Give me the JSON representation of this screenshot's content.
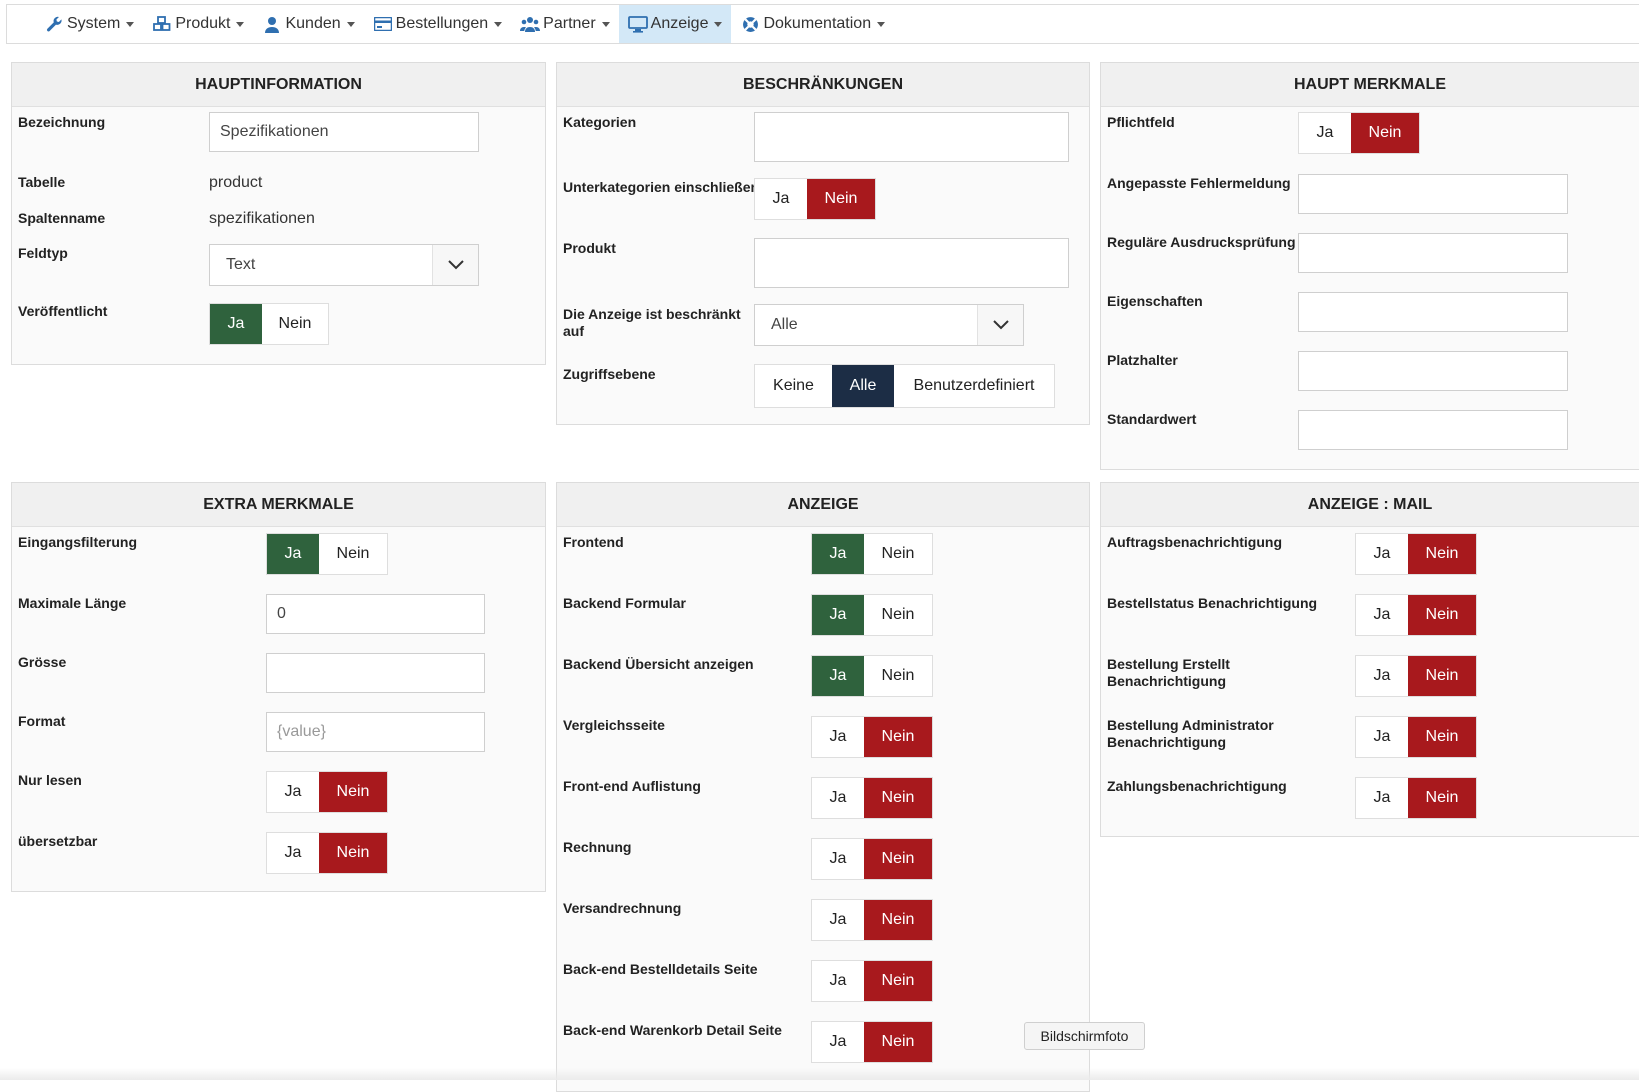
{
  "nav": {
    "items": [
      {
        "label": "System",
        "icon": "wrench-icon"
      },
      {
        "label": "Produkt",
        "icon": "cubes-icon"
      },
      {
        "label": "Kunden",
        "icon": "user-icon"
      },
      {
        "label": "Bestellungen",
        "icon": "credit-card-icon"
      },
      {
        "label": "Partner",
        "icon": "users-icon"
      },
      {
        "label": "Anzeige",
        "icon": "monitor-icon",
        "active": true
      },
      {
        "label": "Dokumentation",
        "icon": "lifebuoy-icon"
      }
    ]
  },
  "colors": {
    "accent_green": "#2f623d",
    "accent_red": "#a8191d",
    "accent_navy": "#1c2d45",
    "active_nav": "#d3e8f7"
  },
  "hauptinformation": {
    "title": "HAUPTINFORMATION",
    "bezeichnung_label": "Bezeichnung",
    "bezeichnung_value": "Spezifikationen",
    "tabelle_label": "Tabelle",
    "tabelle_value": "product",
    "spaltenname_label": "Spaltenname",
    "spaltenname_value": "spezifikationen",
    "feldtyp_label": "Feldtyp",
    "feldtyp_value": "Text",
    "veroeffentlicht_label": "Veröffentlicht",
    "yes": "Ja",
    "no": "Nein",
    "veroeffentlicht_selected": "Ja"
  },
  "beschraenkungen": {
    "title": "BESCHRÄNKUNGEN",
    "kategorien_label": "Kategorien",
    "unterkategorien_label": "Unterkategorien einschließen",
    "yes": "Ja",
    "no": "Nein",
    "unterkategorien_selected": "Nein",
    "produkt_label": "Produkt",
    "anzeige_label": "Die Anzeige ist beschränkt auf",
    "anzeige_value": "Alle",
    "zugriff_label": "Zugriffsebene",
    "zugriff_options": [
      "Keine",
      "Alle",
      "Benutzerdefiniert"
    ],
    "zugriff_selected": "Alle"
  },
  "haupt_merkmale": {
    "title": "HAUPT MERKMALE",
    "pflichtfeld_label": "Pflichtfeld",
    "yes": "Ja",
    "no": "Nein",
    "pflichtfeld_selected": "Nein",
    "fehlermeldung_label": "Angepasste Fehlermeldung",
    "regex_label": "Reguläre Ausdrucksprüfung",
    "eigenschaften_label": "Eigenschaften",
    "platzhalter_label": "Platzhalter",
    "standardwert_label": "Standardwert"
  },
  "extra_merkmale": {
    "title": "EXTRA MERKMALE",
    "yes": "Ja",
    "no": "Nein",
    "eingangsfilterung_label": "Eingangsfilterung",
    "eingangsfilterung_selected": "Ja",
    "maxlaenge_label": "Maximale Länge",
    "maxlaenge_value": "0",
    "groesse_label": "Grösse",
    "format_label": "Format",
    "format_placeholder": "{value}",
    "nurlesen_label": "Nur lesen",
    "nurlesen_selected": "Nein",
    "uebersetzbar_label": "übersetzbar",
    "uebersetzbar_selected": "Nein"
  },
  "anzeige": {
    "title": "ANZEIGE",
    "yes": "Ja",
    "no": "Nein",
    "rows": [
      {
        "label": "Frontend",
        "selected": "Ja"
      },
      {
        "label": "Backend Formular",
        "selected": "Ja"
      },
      {
        "label": "Backend Übersicht anzeigen",
        "selected": "Ja"
      },
      {
        "label": "Vergleichsseite",
        "selected": "Nein"
      },
      {
        "label": "Front-end Auflistung",
        "selected": "Nein"
      },
      {
        "label": "Rechnung",
        "selected": "Nein"
      },
      {
        "label": "Versandrechnung",
        "selected": "Nein"
      },
      {
        "label": "Back-end Bestelldetails Seite",
        "selected": "Nein"
      },
      {
        "label": "Back-end Warenkorb Detail Seite",
        "selected": "Nein"
      }
    ]
  },
  "anzeige_mail": {
    "title": "ANZEIGE : MAIL",
    "yes": "Ja",
    "no": "Nein",
    "rows": [
      {
        "label": "Auftragsbenachrichtigung",
        "selected": "Nein"
      },
      {
        "label": "Bestellstatus Benachrichtigung",
        "selected": "Nein"
      },
      {
        "label": "Bestellung Erstellt Benachrichtigung",
        "selected": "Nein"
      },
      {
        "label": "Bestellung Administrator Benachrichtigung",
        "selected": "Nein"
      },
      {
        "label": "Zahlungsbenachrichtigung",
        "selected": "Nein"
      }
    ]
  },
  "tooltip": {
    "text": "Bildschirmfoto"
  }
}
